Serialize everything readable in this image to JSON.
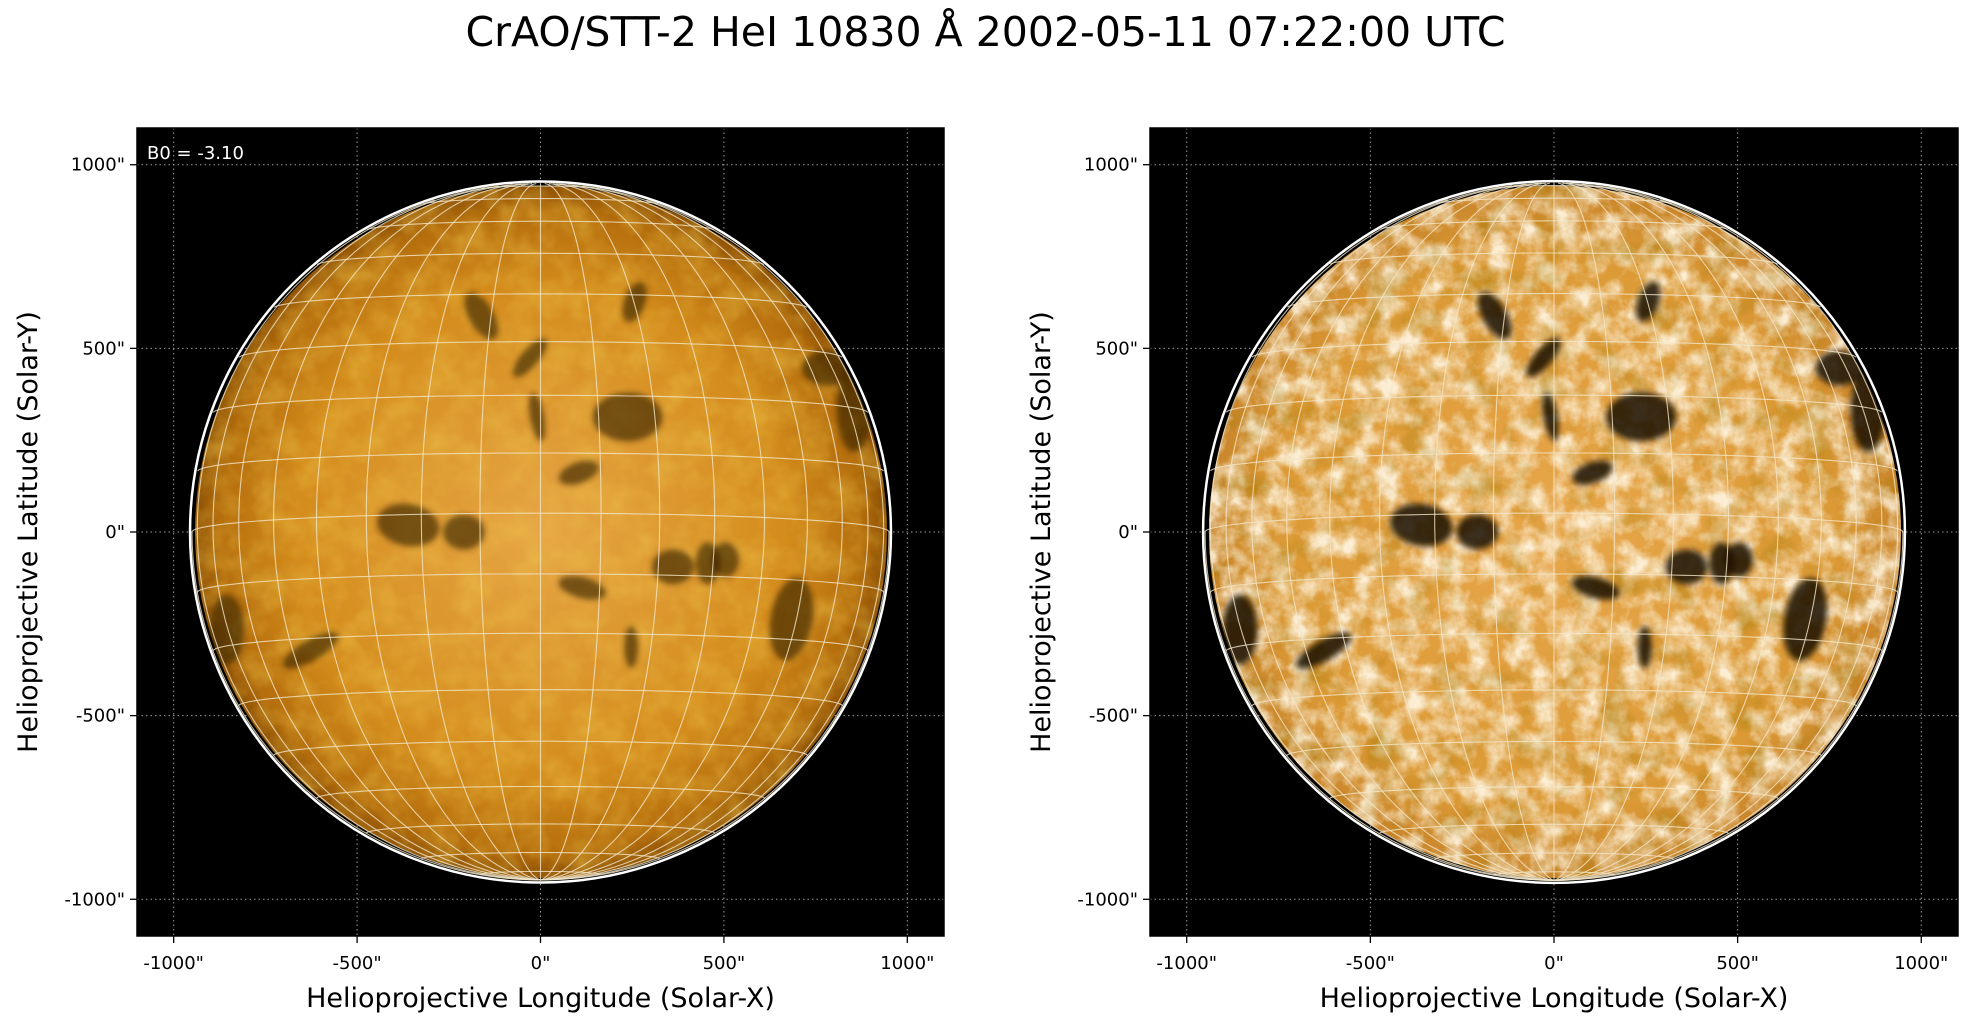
{
  "figure": {
    "title": "CrAO/STT-2 HeI 10830 Å 2002-05-11 07:22:00 UTC"
  },
  "panels": [
    {
      "id": "left",
      "annotation": "B0 = -3.10",
      "xlabel": "Helioprojective Longitude (Solar-X)",
      "ylabel": "Helioprojective Latitude (Solar-Y)",
      "xticks": [
        "-1000\"",
        "-500\"",
        "0\"",
        "500\"",
        "1000\""
      ],
      "yticks": [
        "1000\"",
        "500\"",
        "0\"",
        "-500\"",
        "-1000\""
      ],
      "disk_contrast": "low"
    },
    {
      "id": "right",
      "annotation": "",
      "xlabel": "Helioprojective Longitude (Solar-X)",
      "ylabel": "Helioprojective Latitude (Solar-Y)",
      "xticks": [
        "-1000\"",
        "-500\"",
        "0\"",
        "500\"",
        "1000\""
      ],
      "yticks": [
        "1000\"",
        "500\"",
        "0\"",
        "-500\"",
        "-1000\""
      ],
      "disk_contrast": "high"
    }
  ],
  "colors": {
    "background": "#000000",
    "disk": "#d98c12",
    "limb": "#ffffff",
    "grid": "#f2e6c8"
  }
}
